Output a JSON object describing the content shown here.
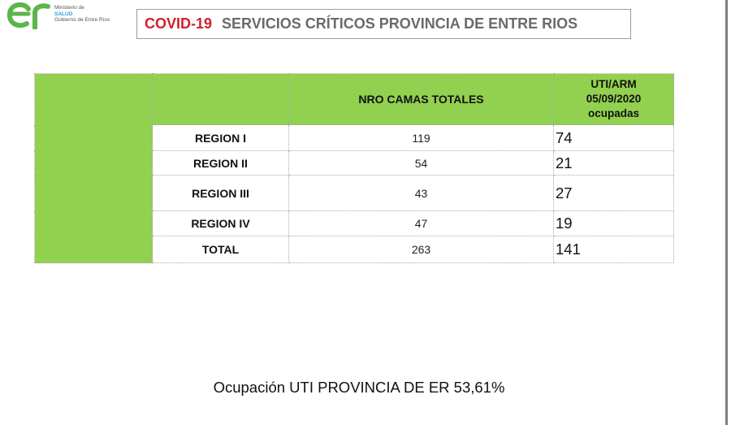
{
  "logo": {
    "mark": "er",
    "line1": "Ministerio de",
    "line2": "SALUD",
    "line3": "Gobierno de Entre Ríos",
    "colors": {
      "green": "#5bb54a",
      "blue": "#2e9fd6"
    }
  },
  "header": {
    "title_prefix": "COVID-19",
    "title_main": "SERVICIOS CRÍTICOS PROVINCIA DE  ENTRE RIOS"
  },
  "table": {
    "col_camas": "NRO CAMAS TOTALES",
    "col_uti_line1": "UTI/ARM",
    "col_uti_line2": "05/09/2020",
    "col_uti_line3": "ocupadas",
    "rows": [
      {
        "region": "REGION I",
        "camas": "119",
        "ocupadas": "74"
      },
      {
        "region": "REGION II",
        "camas": "54",
        "ocupadas": "21"
      },
      {
        "region": "REGION III",
        "camas": "43",
        "ocupadas": "27"
      },
      {
        "region": "REGION IV",
        "camas": "47",
        "ocupadas": "19"
      },
      {
        "region": "TOTAL",
        "camas": "263",
        "ocupadas": "141"
      }
    ],
    "accent": "#92d050"
  },
  "footer": {
    "text": "Ocupación UTI PROVINCIA DE ER 53,61%"
  }
}
